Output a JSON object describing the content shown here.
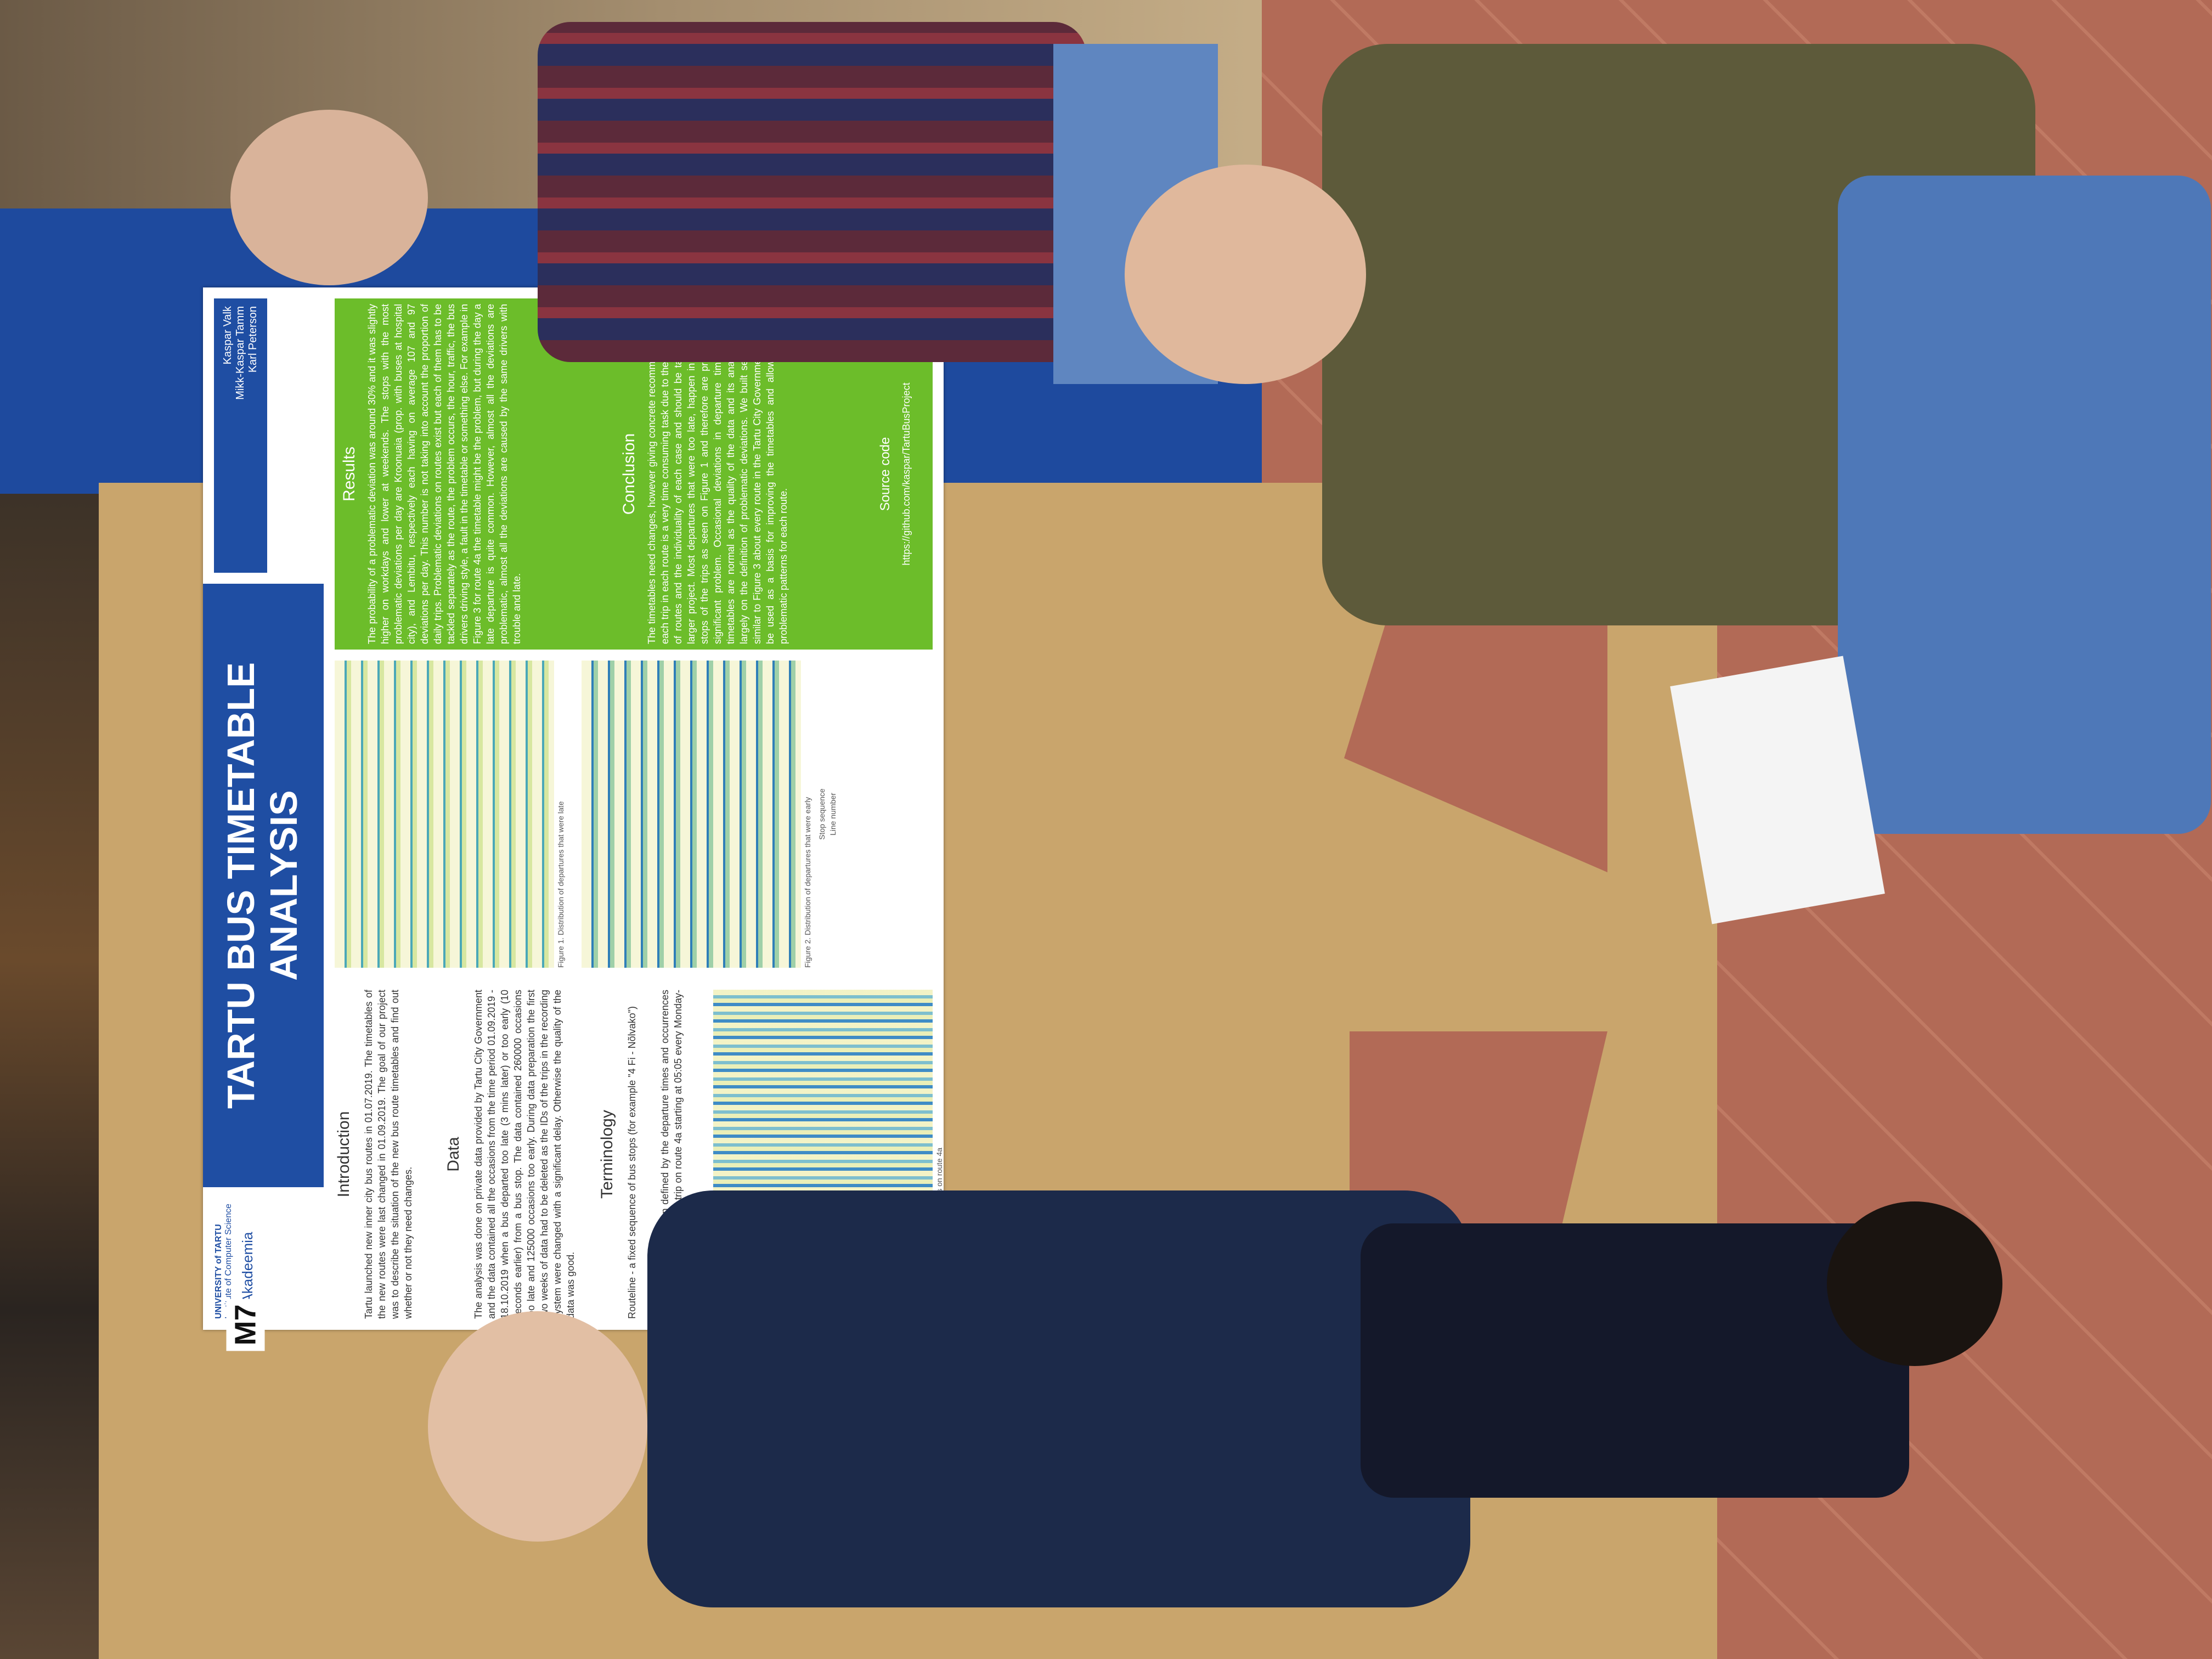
{
  "poster": {
    "title": "TARTU BUS TIMETABLE ANALYSIS",
    "authors": [
      "Kaspar Valk",
      "Mikk-Kaspar Tamm",
      "Karl Peterson"
    ],
    "logos": [
      "UNIVERSITY of TARTU",
      "Institute of Computer Science",
      "IT Akadeemia"
    ],
    "board_label": "M7",
    "introduction": {
      "heading": "Introduction",
      "text": "Tartu launched new inner city bus routes in 01.07.2019. The timetables of the new routes were last changed in 01.09.2019. The goal of our project was to describe the situation of the new bus route timetables and find out whether or not they need changes."
    },
    "data": {
      "heading": "Data",
      "text": "The analysis was done on private data provided by Tartu City Government and the data contained all the occasions from the time period 01.09.2019 - 18.10.2019 when a bus departed too late (3 mins later) or too early (10 seconds earlier) from a bus stop. The data contained 260000 occasions too late and 125000 occasions too early. During data preparation the first two weeks of data had to be deleted as the IDs of the trips in the recording system were changed with a significant delay. Otherwise the quality of the data was good."
    },
    "terminology": {
      "heading": "Terminology",
      "text1": "Routeline - a fixed sequence of bus stops (for example \"4 Fi - Nõlvako\")",
      "text2": "Trip - a route completion defined by the departure times and occurrences on weekdays (for example trip on route 4a starting at 05:05 every Monday-Friday)"
    },
    "figures": {
      "fig1": "Figure 1. Distribution of departures that were late",
      "fig2": "Figure 2. Distribution of departures that were early",
      "fig3": "Figure 3. Probability of late departures on route 4a",
      "axis_x": "Stop sequence",
      "axis_y": "Line number"
    },
    "results": {
      "heading": "Results",
      "text": "The probability of a problematic deviation was around 30% and it was slightly higher on workdays and lower at weekends. The stops with the most problematic deviations per day are Kroonuaia (prop. with buses at hospital city), and Lembitu, respectively each having on average 107 and 97 deviations per day. This number is not taking into account the proportion of daily trips. Problematic deviations on routes exist but each of them has to be tackled separately as the route, the problem occurs, the hour, traffic, the bus drivers driving style, a fault in the timetable or something else. For example in Figure 3 for route 4a the timetable might be the problem, but during the day a late departure is quite common. However, almost all the deviations are problematic, almost all the deviations are caused by the same drivers with trouble and late."
    },
    "conclusion": {
      "heading": "Conclusion",
      "text": "The timetables need changes, however giving concrete recommendations for each trip in each route is a very time consuming task due to the high amount of routes and the individuality of each case and should be tackled with a larger project. Most departures that were too late, happen in the last few stops of the trips as seen on Figure 1 and therefore are probably not a significant problem. Occasional deviations in departure times from the timetables are normal as the quality of the data and its analysis depend largely on the definition of problematic deviations. We built several graphs similar to Figure 3 about every route in the Tartu City Government that could be used as a basis for improving the timetables and allow to see the problematic patterns for each route.",
      "source_heading": "Source code",
      "source_url": "https://github.com/kaspar/TartuBusProject"
    }
  },
  "colors": {
    "title_bg": "#1f4ea3",
    "green_panel": "#6cbd2a",
    "board": "#c9a56c",
    "wall_blue": "#1e4a9e"
  }
}
